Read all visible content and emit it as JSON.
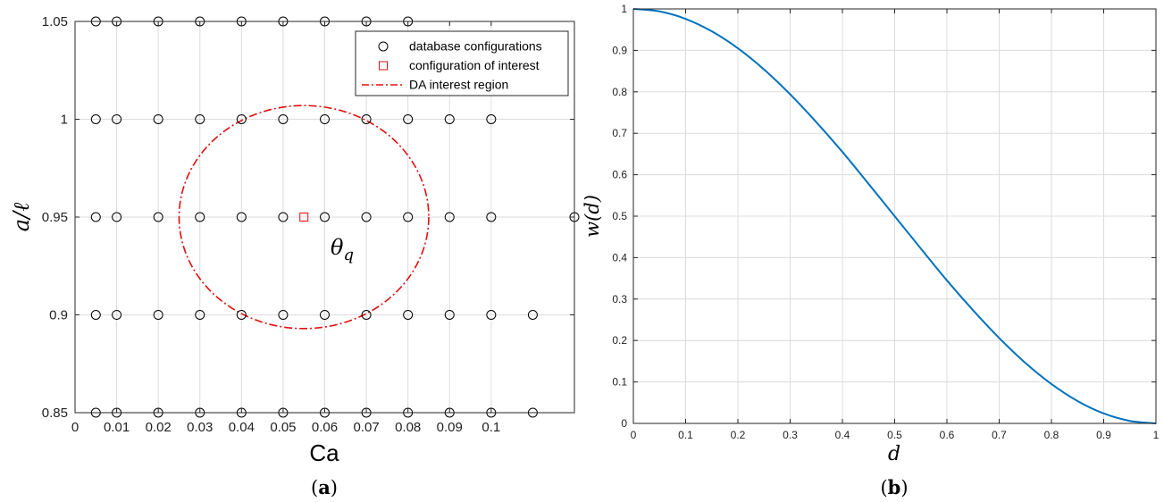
{
  "chart_data": [
    {
      "type": "scatter",
      "caption": "(a)",
      "xlabel": "Ca",
      "ylabel": "a/ℓ",
      "xlim": [
        0,
        0.12
      ],
      "ylim": [
        0.85,
        1.05
      ],
      "xticks": [
        "0",
        "0.01",
        "0.02",
        "0.03",
        "0.04",
        "0.05",
        "0.06",
        "0.07",
        "0.08",
        "0.09",
        "0.1"
      ],
      "yticks": [
        "0.85",
        "0.9",
        "0.95",
        "1",
        "1.05"
      ],
      "grid": true,
      "legend_position": "top-right",
      "series": [
        {
          "name": "database configurations",
          "marker": "circle",
          "color": "#000000",
          "x": [
            0.005,
            0.01,
            0.02,
            0.03,
            0.04,
            0.05,
            0.06,
            0.07,
            0.08,
            0.09,
            0.1,
            0.11,
            0.005,
            0.01,
            0.02,
            0.03,
            0.04,
            0.05,
            0.06,
            0.07,
            0.08,
            0.09,
            0.1,
            0.11,
            0.005,
            0.01,
            0.02,
            0.03,
            0.04,
            0.05,
            0.06,
            0.07,
            0.08,
            0.09,
            0.1,
            0.005,
            0.01,
            0.02,
            0.03,
            0.04,
            0.05,
            0.06,
            0.07,
            0.08,
            0.09,
            0.1,
            0.005,
            0.01,
            0.02,
            0.03,
            0.04,
            0.05,
            0.06,
            0.07,
            0.08
          ],
          "y": [
            0.85,
            0.85,
            0.85,
            0.85,
            0.85,
            0.85,
            0.85,
            0.85,
            0.85,
            0.85,
            0.85,
            0.85,
            0.9,
            0.9,
            0.9,
            0.9,
            0.9,
            0.9,
            0.9,
            0.9,
            0.9,
            0.9,
            0.9,
            0.9,
            0.95,
            0.95,
            0.95,
            0.95,
            0.95,
            0.95,
            0.95,
            0.95,
            0.95,
            0.95,
            0.95,
            1.0,
            1.0,
            1.0,
            1.0,
            1.0,
            1.0,
            1.0,
            1.0,
            1.0,
            1.0,
            1.0,
            1.05,
            1.05,
            1.05,
            1.05,
            1.05,
            1.05,
            1.05,
            1.05,
            1.05
          ]
        },
        {
          "name": "configuration of interest",
          "marker": "square",
          "color": "#e01010",
          "x": [
            0.055
          ],
          "y": [
            0.95
          ],
          "annotation": "θq"
        },
        {
          "name": "DA interest region",
          "marker": "dash-dot-line",
          "color": "#e01010",
          "shape": "ellipse",
          "center": [
            0.055,
            0.95
          ],
          "radius_x": 0.03,
          "radius_y": 0.057
        }
      ],
      "edge_points": [
        {
          "x": 0.12,
          "y": 0.95
        }
      ]
    },
    {
      "type": "line",
      "caption": "(b)",
      "xlabel": "d",
      "ylabel": "w(d)",
      "xlim": [
        0,
        1
      ],
      "ylim": [
        0,
        1
      ],
      "xticks": [
        "0",
        "0.1",
        "0.2",
        "0.3",
        "0.4",
        "0.5",
        "0.6",
        "0.7",
        "0.8",
        "0.9",
        "1"
      ],
      "yticks": [
        "0",
        "0.1",
        "0.2",
        "0.3",
        "0.4",
        "0.5",
        "0.6",
        "0.7",
        "0.8",
        "0.9",
        "1"
      ],
      "grid": true,
      "color": "#0072bd",
      "x": [
        0,
        0.05,
        0.1,
        0.15,
        0.2,
        0.25,
        0.3,
        0.35,
        0.4,
        0.45,
        0.5,
        0.55,
        0.6,
        0.65,
        0.7,
        0.75,
        0.8,
        0.85,
        0.9,
        0.95,
        1.0
      ],
      "y": [
        1.0,
        0.994,
        0.976,
        0.946,
        0.905,
        0.854,
        0.794,
        0.727,
        0.655,
        0.578,
        0.5,
        0.422,
        0.345,
        0.273,
        0.206,
        0.146,
        0.095,
        0.054,
        0.024,
        0.006,
        0.0
      ]
    }
  ]
}
